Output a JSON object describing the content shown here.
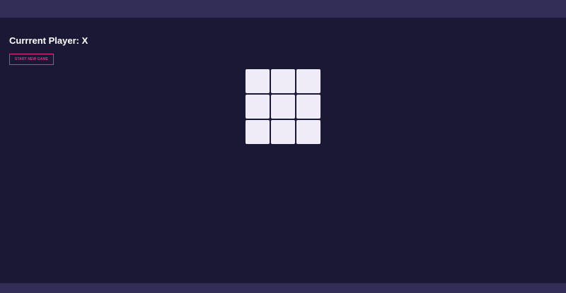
{
  "header": {
    "status_label": "Currrent Player: X"
  },
  "controls": {
    "new_game_label": "START NEW GAME"
  },
  "board": {
    "cells": [
      "",
      "",
      "",
      "",
      "",
      "",
      "",
      "",
      ""
    ]
  },
  "colors": {
    "background": "#1b1835",
    "bar": "#322d57",
    "accent": "#e4308a",
    "cell": "#efecf7"
  }
}
